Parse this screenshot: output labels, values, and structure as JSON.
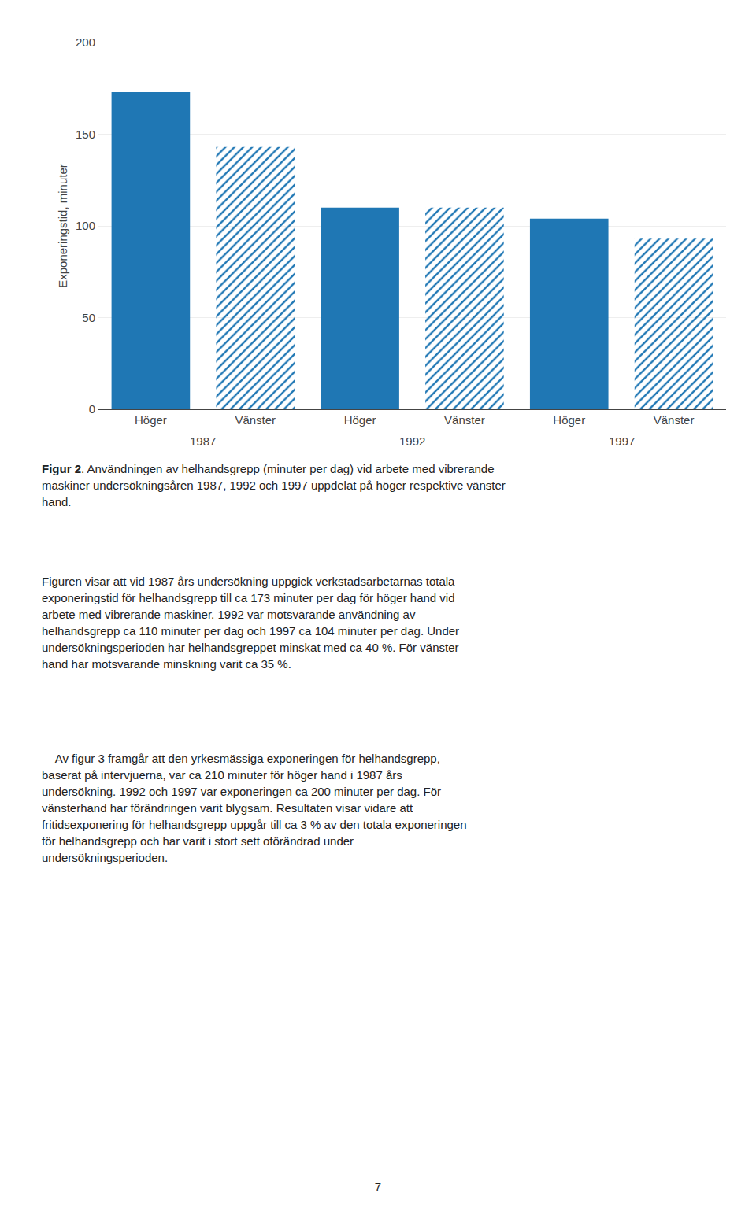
{
  "chart_data": {
    "type": "bar",
    "categories": [
      "Höger",
      "Vänster",
      "Höger",
      "Vänster",
      "Höger",
      "Vänster"
    ],
    "values": [
      173,
      143,
      110,
      110,
      104,
      93
    ],
    "ylabel": "Exponeringstid, minuter",
    "ylim": [
      0,
      200
    ],
    "yticks": [
      0,
      50,
      100,
      150,
      200
    ],
    "grid": true,
    "annotations": [
      "1987",
      "1992",
      "1997"
    ]
  },
  "caption": {
    "label": "Figur 2",
    "text": ". Användningen av helhandsgrepp (minuter per dag) vid arbete med vibrerande\nmaskiner undersökningsåren 1987, 1992 och 1997 uppdelat på höger respektive vänster\nhand."
  },
  "paragraphs": [
    "Figuren visar att vid 1987 års undersökning uppgick verkstadsarbetarnas totala\nexponeringstid för helhandsgrepp till ca 173 minuter per dag för höger hand vid\narbete med vibrerande maskiner. 1992 var motsvarande användning av\nhelhandsgrepp ca 110 minuter per dag och 1997 ca 104 minuter per dag. Under\nundersökningsperioden har helhandsgreppet minskat med ca 40 %. För vänster\nhand har motsvarande minskning varit ca 35 %.",
    "    Av figur 3 framgår att den yrkesmässiga exponeringen för helhandsgrepp,\nbaserat på intervjuerna, var ca 210 minuter för höger hand i 1987 års\nundersökning. 1992 och 1997 var exponeringen ca 200 minuter per dag. För\nvänsterhand har förändringen varit blygsam. Resultaten visar vidare att\nfritidsexponering för helhandsgrepp uppgår till ca 3 % av den totala exponeringen\nför helhandsgrepp och har varit i stort sett oförändrad under\nundersökningsperioden."
  ],
  "page_number": "7"
}
